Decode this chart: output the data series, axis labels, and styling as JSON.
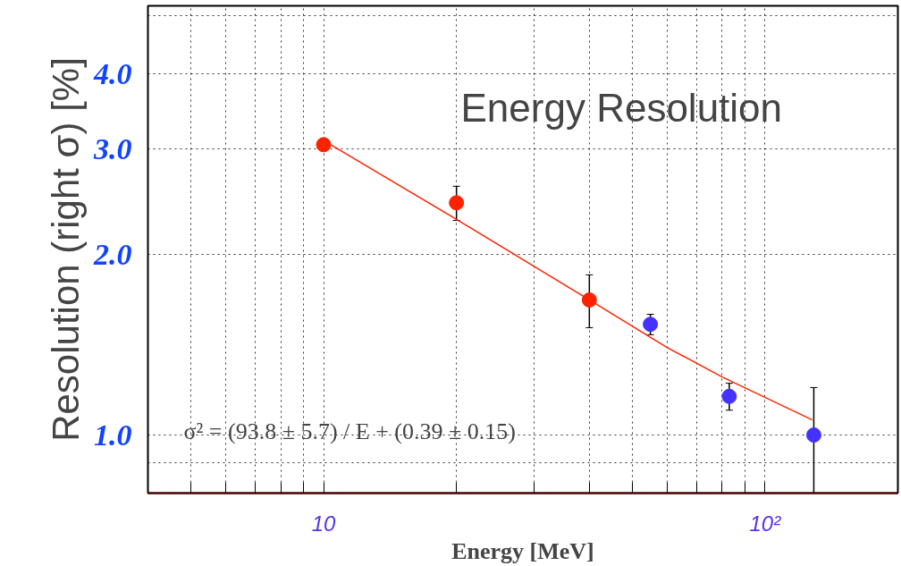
{
  "chart_data": {
    "type": "scatter",
    "title": "Energy Resolution",
    "xlabel": "Energy [MeV]",
    "ylabel": "Resolution (right σ) [%]",
    "log": "xy",
    "grid": true,
    "marker": "circle",
    "xlim": [
      4,
      200
    ],
    "ylim": [
      0.8,
      5.2
    ],
    "xticks": [
      {
        "value": 4,
        "label": null
      },
      {
        "value": 5,
        "label": null
      },
      {
        "value": 6,
        "label": null
      },
      {
        "value": 7,
        "label": null
      },
      {
        "value": 8,
        "label": null
      },
      {
        "value": 9,
        "label": null
      },
      10,
      {
        "value": 20,
        "label": null
      },
      {
        "value": 30,
        "label": null
      },
      {
        "value": 40,
        "label": null
      },
      {
        "value": 50,
        "label": null
      },
      {
        "value": 60,
        "label": null
      },
      {
        "value": 70,
        "label": null
      },
      {
        "value": 80,
        "label": null
      },
      {
        "value": 90,
        "label": null
      },
      {
        "value": 100,
        "label": "10²"
      }
    ],
    "yticks": [
      {
        "value": 0.9,
        "label": null
      },
      {
        "value": 1,
        "label": "1.0"
      },
      {
        "value": 2,
        "label": "2.0"
      },
      {
        "value": 3,
        "label": "3.0"
      },
      {
        "value": 4,
        "label": "4.0"
      },
      {
        "value": 5,
        "label": null
      }
    ],
    "series": [
      {
        "color": "#ff2200",
        "x": [
          10,
          20,
          40
        ],
        "values": [
          3.05,
          2.44,
          1.68
        ],
        "errors": [
          null,
          0.16,
          0.17
        ]
      },
      {
        "color": "#4433ff",
        "x": [
          55,
          83,
          129
        ],
        "values": [
          1.53,
          1.16,
          1.0
        ],
        "errors": [
          0.06,
          0.06,
          [
            0.8,
            1.2
          ]
        ]
      },
      {
        "type": "line",
        "marker": "none",
        "color": "#ff2200",
        "x": [
          10,
          20,
          40,
          60,
          80,
          128
        ],
        "values": [
          3.1,
          2.29,
          1.68,
          1.4,
          1.25,
          1.06
        ]
      }
    ],
    "annotations": [
      "σ² = (93.8 ± 5.7) / E + (0.39 ± 0.15)"
    ]
  }
}
